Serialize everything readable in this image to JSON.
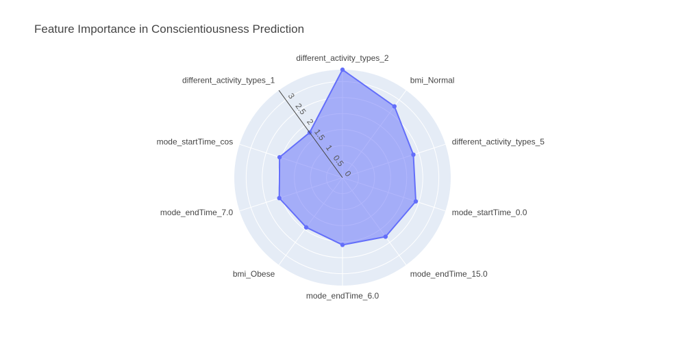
{
  "chart_data": {
    "type": "radar",
    "title": "Feature Importance in Conscientiousness Prediction",
    "categories": [
      "different_activity_types_2",
      "bmi_Normal",
      "different_activity_types_5",
      "mode_startTime_0.0",
      "mode_endTime_15.0",
      "mode_endTime_6.0",
      "bmi_Obese",
      "mode_endTime_7.0",
      "mode_startTime_cos",
      "different_activity_types_1"
    ],
    "series": [
      {
        "values": [
          3.37,
          2.75,
          2.32,
          2.4,
          2.28,
          2.1,
          1.92,
          2.07,
          2.06,
          1.74
        ]
      }
    ],
    "radial_axis": {
      "range": [
        0,
        3.37
      ],
      "ticks": [
        0,
        0.5,
        1,
        1.5,
        2,
        2.5,
        3
      ],
      "tick_labels": [
        "0",
        "0.5",
        "1",
        "1.5",
        "2",
        "2.5",
        "3"
      ]
    },
    "grid": true,
    "legend": "none",
    "colors": {
      "background": "#e5ecf6",
      "grid": "#ffffff",
      "line": "#636efa",
      "fill": "rgba(99,110,250,0.5)",
      "label": "#444444",
      "tick_label": "#555555"
    }
  }
}
